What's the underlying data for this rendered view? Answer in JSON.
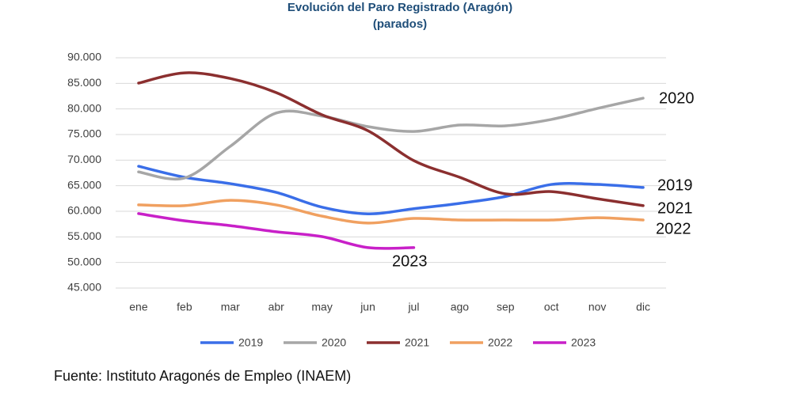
{
  "chart_data": {
    "type": "line",
    "title": "Evolución del Paro Registrado (Aragón)",
    "subtitle": "(parados)",
    "source": "Fuente: Instituto Aragonés de Empleo (INAEM)",
    "categories": [
      "ene",
      "feb",
      "mar",
      "abr",
      "may",
      "jun",
      "jul",
      "ago",
      "sep",
      "oct",
      "nov",
      "dic"
    ],
    "ylim": [
      45000,
      90000
    ],
    "yticks": [
      {
        "value": 45000,
        "label": "45.000"
      },
      {
        "value": 50000,
        "label": "50.000"
      },
      {
        "value": 55000,
        "label": "55.000"
      },
      {
        "value": 60000,
        "label": "60.000"
      },
      {
        "value": 65000,
        "label": "65.000"
      },
      {
        "value": 70000,
        "label": "70.000"
      },
      {
        "value": 75000,
        "label": "75.000"
      },
      {
        "value": 80000,
        "label": "80.000"
      },
      {
        "value": 85000,
        "label": "85.000"
      },
      {
        "value": 90000,
        "label": "90.000"
      }
    ],
    "grid": true,
    "legend": "bottom",
    "series": [
      {
        "name": "2019",
        "color": "#3a6ee8",
        "values": [
          68800,
          66650,
          65400,
          63700,
          60800,
          59500,
          60500,
          61550,
          62900,
          65250,
          65250,
          64650
        ]
      },
      {
        "name": "2020",
        "color": "#a6a6a6",
        "values": [
          67700,
          66500,
          72700,
          79200,
          78600,
          76550,
          75600,
          76850,
          76700,
          77950,
          80100,
          82100
        ]
      },
      {
        "name": "2021",
        "color": "#8b2f2f",
        "values": [
          85050,
          87050,
          85950,
          83200,
          78850,
          75750,
          69900,
          66650,
          63400,
          63850,
          62450,
          61100
        ]
      },
      {
        "name": "2022",
        "color": "#f0a060",
        "values": [
          61250,
          61100,
          62150,
          61250,
          59050,
          57700,
          58600,
          58300,
          58300,
          58300,
          58750,
          58300
        ]
      },
      {
        "name": "2023",
        "color": "#c820c8",
        "values": [
          59550,
          58150,
          57200,
          56000,
          55050,
          52900,
          52900,
          null,
          null,
          null,
          null,
          null
        ]
      }
    ]
  }
}
